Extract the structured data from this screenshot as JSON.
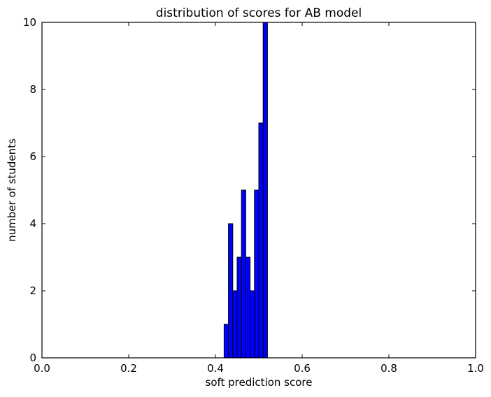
{
  "chart_data": {
    "type": "bar",
    "title": "distribution of scores for AB model",
    "xlabel": "soft prediction score",
    "ylabel": "number of students",
    "xlim": [
      0.0,
      1.0
    ],
    "ylim": [
      0,
      10
    ],
    "grid": false,
    "bar_color": "#0000ff",
    "edge_color": "#000000",
    "x_ticks": [
      {
        "value": 0.0,
        "label": "0.0"
      },
      {
        "value": 0.2,
        "label": "0.2"
      },
      {
        "value": 0.4,
        "label": "0.4"
      },
      {
        "value": 0.6,
        "label": "0.6"
      },
      {
        "value": 0.8,
        "label": "0.8"
      },
      {
        "value": 1.0,
        "label": "1.0"
      }
    ],
    "y_ticks": [
      {
        "value": 0,
        "label": "0"
      },
      {
        "value": 2,
        "label": "2"
      },
      {
        "value": 4,
        "label": "4"
      },
      {
        "value": 6,
        "label": "6"
      },
      {
        "value": 8,
        "label": "8"
      },
      {
        "value": 10,
        "label": "10"
      }
    ],
    "bins": [
      {
        "start": 0.42,
        "end": 0.43,
        "count": 1
      },
      {
        "start": 0.43,
        "end": 0.44,
        "count": 4
      },
      {
        "start": 0.44,
        "end": 0.45,
        "count": 2
      },
      {
        "start": 0.45,
        "end": 0.46,
        "count": 3
      },
      {
        "start": 0.46,
        "end": 0.47,
        "count": 5
      },
      {
        "start": 0.47,
        "end": 0.48,
        "count": 3
      },
      {
        "start": 0.48,
        "end": 0.49,
        "count": 2
      },
      {
        "start": 0.49,
        "end": 0.5,
        "count": 5
      },
      {
        "start": 0.5,
        "end": 0.51,
        "count": 7
      },
      {
        "start": 0.51,
        "end": 0.52,
        "count": 10
      }
    ]
  }
}
